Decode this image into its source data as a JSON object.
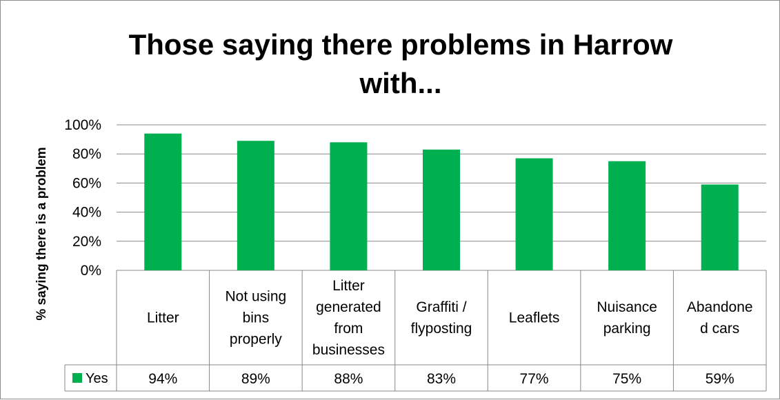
{
  "chart_data": {
    "type": "bar",
    "title": "Those saying there problems in Harrow with...",
    "ylabel": "% saying there is a problem",
    "xlabel": "",
    "ylim": [
      0,
      100
    ],
    "y_ticks": [
      "0%",
      "20%",
      "40%",
      "60%",
      "80%",
      "100%"
    ],
    "grid": true,
    "categories": [
      "Litter",
      "Not using bins properly",
      "Litter generated from businesses",
      "Graffiti / flyposting",
      "Leaflets",
      "Nuisance parking",
      "Abandoned cars"
    ],
    "category_label_lines": [
      [
        "Litter"
      ],
      [
        "Not using",
        "bins",
        "properly"
      ],
      [
        "Litter",
        "generated",
        "from",
        "businesses"
      ],
      [
        "Graffiti /",
        "flyposting"
      ],
      [
        "Leaflets"
      ],
      [
        "Nuisance",
        "parking"
      ],
      [
        "Abandone",
        "d cars"
      ]
    ],
    "series": [
      {
        "name": "Yes",
        "values": [
          94,
          89,
          88,
          83,
          77,
          75,
          59
        ],
        "color": "#00b050"
      }
    ],
    "data_table": {
      "legend_key": "Yes",
      "values": [
        "94%",
        "89%",
        "88%",
        "83%",
        "77%",
        "75%",
        "59%"
      ]
    }
  }
}
